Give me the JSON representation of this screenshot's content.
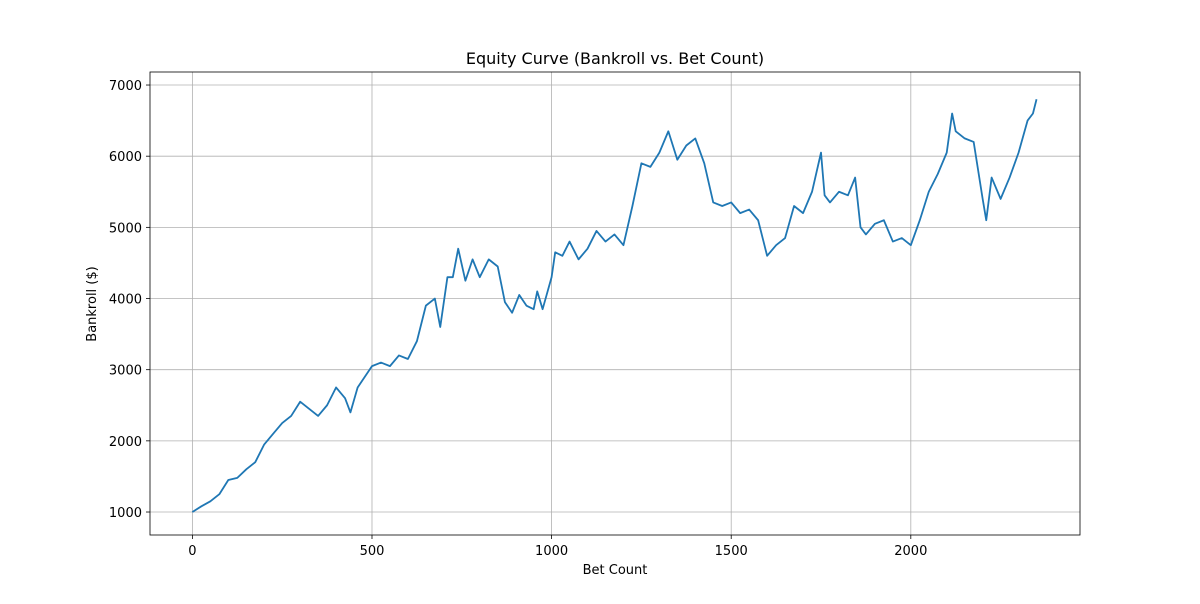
{
  "chart_data": {
    "type": "line",
    "title": "Equity Curve (Bankroll vs. Bet Count)",
    "x_label": "Bet Count",
    "y_label": "Bankroll ($)",
    "x": [
      0,
      25,
      50,
      75,
      100,
      125,
      150,
      175,
      200,
      225,
      250,
      275,
      300,
      325,
      350,
      375,
      400,
      425,
      440,
      460,
      500,
      525,
      550,
      575,
      600,
      625,
      650,
      675,
      690,
      710,
      725,
      740,
      760,
      780,
      800,
      825,
      850,
      870,
      890,
      910,
      930,
      950,
      960,
      975,
      1000,
      1010,
      1030,
      1050,
      1075,
      1100,
      1125,
      1150,
      1175,
      1200,
      1225,
      1250,
      1275,
      1300,
      1325,
      1350,
      1375,
      1400,
      1425,
      1450,
      1475,
      1500,
      1525,
      1550,
      1575,
      1600,
      1625,
      1650,
      1675,
      1700,
      1725,
      1750,
      1760,
      1775,
      1800,
      1825,
      1845,
      1860,
      1875,
      1900,
      1925,
      1950,
      1975,
      2000,
      2025,
      2050,
      2075,
      2100,
      2115,
      2125,
      2150,
      2175,
      2200,
      2210,
      2225,
      2250,
      2275,
      2300,
      2325,
      2340,
      2350
    ],
    "series": [
      {
        "name": "Bankroll",
        "color": "#1f77b4",
        "values": [
          1000,
          1080,
          1150,
          1250,
          1450,
          1480,
          1600,
          1700,
          1950,
          2100,
          2250,
          2350,
          2550,
          2450,
          2350,
          2500,
          2750,
          2600,
          2400,
          2750,
          3050,
          3100,
          3050,
          3200,
          3150,
          3400,
          3900,
          4000,
          3600,
          4300,
          4300,
          4700,
          4250,
          4550,
          4300,
          4550,
          4450,
          3950,
          3800,
          4050,
          3900,
          3850,
          4100,
          3850,
          4300,
          4650,
          4600,
          4800,
          4550,
          4700,
          4950,
          4800,
          4900,
          4750,
          5300,
          5900,
          5850,
          6050,
          6350,
          5950,
          6150,
          6250,
          5900,
          5350,
          5300,
          5350,
          5200,
          5250,
          5100,
          4600,
          4750,
          4850,
          5300,
          5200,
          5500,
          6050,
          5450,
          5350,
          5500,
          5450,
          5700,
          5000,
          4900,
          5050,
          5100,
          4800,
          4850,
          4750,
          5100,
          5500,
          5750,
          6050,
          6600,
          6350,
          6250,
          6200,
          5400,
          5100,
          5700,
          5400,
          5700,
          6050,
          6500,
          6600,
          6800
        ]
      }
    ],
    "xlim": [
      -118,
      2471
    ],
    "ylim": [
      677,
      7183
    ],
    "xticks": [
      0,
      500,
      1000,
      1500,
      2000
    ],
    "yticks": [
      1000,
      2000,
      3000,
      4000,
      5000,
      6000,
      7000
    ],
    "grid": true
  }
}
